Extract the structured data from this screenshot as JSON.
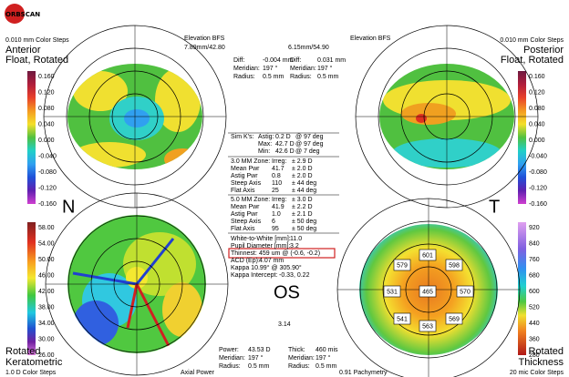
{
  "header": {
    "logo": "ORBSCAN"
  },
  "anterior": {
    "color_steps": "0.010 mm Color Steps",
    "title": "Anterior",
    "subtitle": "Float, Rotated",
    "bfs_label": "Elevation BFS",
    "bfs": "7.89mm/42.80",
    "diff_label": "Diff:",
    "diff": "-0.004 mm",
    "meridian_label": "Meridian:",
    "meridian": "197 °",
    "radius_label": "Radius:",
    "radius": "0.5 mm",
    "scale": [
      "0.160",
      "0.120",
      "0.080",
      "0.040",
      "0.000",
      "-0.040",
      "-0.080",
      "-0.120",
      "-0.160"
    ]
  },
  "posterior": {
    "color_steps": "0.010 mm Color Steps",
    "title": "Posterior",
    "subtitle": "Float, Rotated",
    "bfs_label": "Elevation BFS",
    "bfs": "6.15mm/54.90",
    "diff": "0.031 mm",
    "meridian": "197 °",
    "radius": "0.5 mm",
    "scale": [
      "0.160",
      "0.120",
      "0.080",
      "0.040",
      "0.000",
      "-0.040",
      "-0.080",
      "-0.120",
      "-0.160"
    ]
  },
  "keratometric": {
    "subtitle": "Rotated",
    "title": "Keratometric",
    "color_steps": "1.0 D Color Steps",
    "map_type": "Axial Power",
    "power_label": "Power:",
    "power": "43.53 D",
    "meridian_label": "Meridian:",
    "meridian": "197 °",
    "radius_label": "Radius:",
    "radius": "0.5 mm",
    "scale": [
      "58.00",
      "54.00",
      "50.00",
      "46.00",
      "42.00",
      "38.00",
      "34.00",
      "30.00",
      "26.00"
    ]
  },
  "thickness": {
    "map_type": "0.91 Pachymetry",
    "subtitle": "Rotated",
    "title": "Thickness",
    "color_steps": "20 mic Color Steps",
    "thick_label": "Thick:",
    "thick": "460 mis",
    "meridian_label": "Meridian:",
    "meridian": "197 °",
    "radius_label": "Radius:",
    "radius": "0.5 mm",
    "scale": [
      "920",
      "840",
      "760",
      "680",
      "600",
      "520",
      "440",
      "360",
      "280"
    ],
    "points": [
      "601",
      "579",
      "598",
      "531",
      "465",
      "570",
      "541",
      "563",
      "569"
    ]
  },
  "orientation": {
    "nasal": "N",
    "temporal": "T",
    "eye": "OS",
    "scale_note": "3.14"
  },
  "summary": {
    "rows": [
      [
        "Sim K's:",
        "Astig:",
        "0.2 D",
        "@ 97 deg"
      ],
      [
        "Max:",
        "42.7 D",
        "@ 97 deg"
      ],
      [
        "Min:",
        "42.6 D",
        "@ 7 deg"
      ],
      [
        "3.0 MM Zone:",
        "Irreg:",
        "± 2.9 D"
      ],
      [
        "Mean Pwr",
        "41.7",
        "± 2.0 D"
      ],
      [
        "Astig Pwr",
        "0.8",
        "± 2.0 D"
      ],
      [
        "Steep Axis",
        "110",
        "± 44 deg"
      ],
      [
        "Flat Axis",
        "25",
        "± 44 deg"
      ],
      [
        "5.0 MM Zone:",
        "Irreg:",
        "± 3.0 D"
      ],
      [
        "Mean Pwr",
        "41.9",
        "± 2.2 D"
      ],
      [
        "Astig Pwr",
        "1.0",
        "± 2.1 D"
      ],
      [
        "Steep Axis",
        "6",
        "± 50 deg"
      ],
      [
        "Flat Axis",
        "95",
        "± 50 deg"
      ],
      [
        "White-to-White [mm]:",
        "11.0"
      ],
      [
        "Pupil Diameter [mm]:",
        "3.2"
      ],
      [
        "Thinnest:",
        "459 um @ (-0.6, -0.2)"
      ],
      [
        "ACD (Ep):",
        "4.07 mm"
      ],
      [
        "Kappa 10.99° @ 305.90°"
      ],
      [
        "Kappa Intercept:",
        "-0.33, 0.22"
      ]
    ]
  }
}
